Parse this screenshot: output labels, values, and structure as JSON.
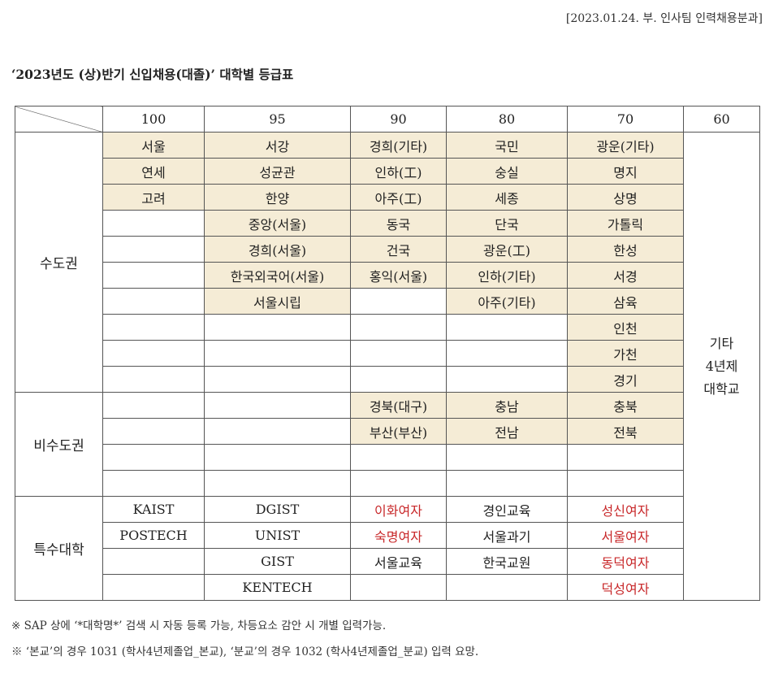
{
  "header_note": "[2023.01.24. 부. 인사팀 인력채용분과]",
  "title": "‘2023년도 (상)반기 신입채용(대졸)’ 대학별 등급표",
  "columns": [
    "100",
    "95",
    "90",
    "80",
    "70",
    "60"
  ],
  "regions": {
    "capital": "수도권",
    "non_capital": "비수도권",
    "special": "특수대학"
  },
  "grade60": [
    "기타",
    "4년제",
    "대학교"
  ],
  "rows": [
    [
      "서울",
      "서강",
      "경희(기타)",
      "국민",
      "광운(기타)"
    ],
    [
      "연세",
      "성균관",
      "인하(工)",
      "숭실",
      "명지"
    ],
    [
      "고려",
      "한양",
      "아주(工)",
      "세종",
      "상명"
    ],
    [
      "",
      "중앙(서울)",
      "동국",
      "단국",
      "가톨릭"
    ],
    [
      "",
      "경희(서울)",
      "건국",
      "광운(工)",
      "한성"
    ],
    [
      "",
      "한국외국어(서울)",
      "홍익(서울)",
      "인하(기타)",
      "서경"
    ],
    [
      "",
      "서울시립",
      "",
      "아주(기타)",
      "삼육"
    ],
    [
      "",
      "",
      "",
      "",
      "인천"
    ],
    [
      "",
      "",
      "",
      "",
      "가천"
    ],
    [
      "",
      "",
      "",
      "",
      "경기"
    ],
    [
      "",
      "",
      "경북(대구)",
      "충남",
      "충북"
    ],
    [
      "",
      "",
      "부산(부산)",
      "전남",
      "전북"
    ],
    [
      "",
      "",
      "",
      "",
      ""
    ],
    [
      "",
      "",
      "",
      "",
      ""
    ],
    [
      "KAIST",
      "DGIST",
      "이화여자",
      "경인교육",
      "성신여자"
    ],
    [
      "POSTECH",
      "UNIST",
      "숙명여자",
      "서울과기",
      "서울여자"
    ],
    [
      "",
      "GIST",
      "서울교육",
      "한국교원",
      "동덕여자"
    ],
    [
      "",
      "KENTECH",
      "",
      "",
      "덕성여자"
    ]
  ],
  "notes": [
    "※ SAP 상에 ‘*대학명*’ 검색 시 자동 등록 가능, 차등요소 감안 시 개별 입력가능.",
    "※ ‘본교’의 경우 1031 (학사4년제졸업_본교), ‘분교’의 경우 1032 (학사4년제졸업_분교) 입력 요망."
  ],
  "colors": {
    "highlight": "#f5ecd6",
    "women_univ": "#c8282a",
    "border": "#555555"
  }
}
